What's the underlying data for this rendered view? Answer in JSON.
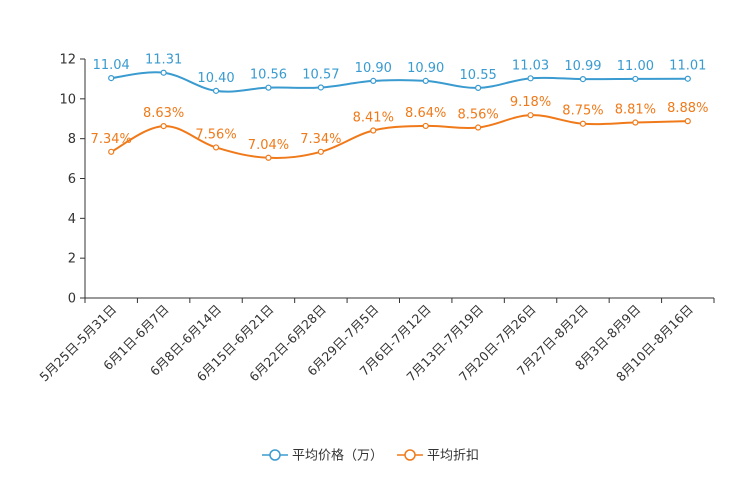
{
  "chart_data": {
    "type": "line",
    "title": "",
    "xlabel": "",
    "ylabel": "",
    "ylim": [
      0,
      12
    ],
    "yticks": [
      0,
      2,
      4,
      6,
      8,
      10,
      12
    ],
    "grid": false,
    "legend_position": "bottom-center",
    "categories": [
      "5月25日-5月31日",
      "6月1日-6月7日",
      "6月8日-6月14日",
      "6月15日-6月21日",
      "6月22日-6月28日",
      "6月29日-7月5日",
      "7月6日-7月12日",
      "7月13日-7月19日",
      "7月20日-7月26日",
      "7月27日-8月2日",
      "8月3日-8月9日",
      "8月10日-8月16日"
    ],
    "series": [
      {
        "name": "平均价格（万）",
        "color": "#3a9bd0",
        "values": [
          11.04,
          11.31,
          10.4,
          10.56,
          10.57,
          10.9,
          10.9,
          10.55,
          11.03,
          10.99,
          11.0,
          11.01
        ],
        "labels": [
          "11.04",
          "11.31",
          "10.40",
          "10.56",
          "10.57",
          "10.90",
          "10.90",
          "10.55",
          "11.03",
          "10.99",
          "11.00",
          "11.01"
        ]
      },
      {
        "name": "平均折扣",
        "color": "#f07a1a",
        "values": [
          7.34,
          8.63,
          7.56,
          7.04,
          7.34,
          8.41,
          8.64,
          8.56,
          9.18,
          8.75,
          8.81,
          8.88
        ],
        "labels": [
          "7.34%",
          "8.63%",
          "7.56%",
          "7.04%",
          "7.34%",
          "8.41%",
          "8.64%",
          "8.56%",
          "9.18%",
          "8.75%",
          "8.81%",
          "8.88%"
        ]
      }
    ]
  }
}
